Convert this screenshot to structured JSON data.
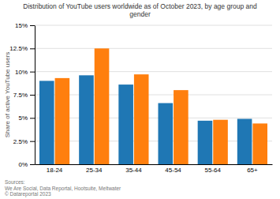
{
  "chart_data": {
    "type": "bar",
    "title": "Distribution of YouTube users worldwide as of October 2023, by age group and\ngender",
    "ylabel": "Share of active YouTube users",
    "categories": [
      "18-24",
      "25-34",
      "35-44",
      "45-54",
      "55-64",
      "65+"
    ],
    "series": [
      {
        "values": [
          9.0,
          9.6,
          8.6,
          6.6,
          4.7,
          4.9
        ]
      },
      {
        "values": [
          9.3,
          12.5,
          9.7,
          8.0,
          4.8,
          4.4
        ]
      }
    ],
    "ylim": [
      0,
      15
    ],
    "yticks": [
      {
        "value": 0,
        "label": "0%"
      },
      {
        "value": 2.5,
        "label": "2.5%"
      },
      {
        "value": 5,
        "label": "5%"
      },
      {
        "value": 7.5,
        "label": "7.5%"
      },
      {
        "value": 10,
        "label": "10%"
      },
      {
        "value": 12.5,
        "label": "12.5%"
      },
      {
        "value": 15,
        "label": "15%"
      }
    ],
    "grid": true,
    "annotations": [
      "Sources:\nWe Are Social, Data Reportal, Hootsuite, Meltwater\n© Datareportal 2023"
    ]
  }
}
